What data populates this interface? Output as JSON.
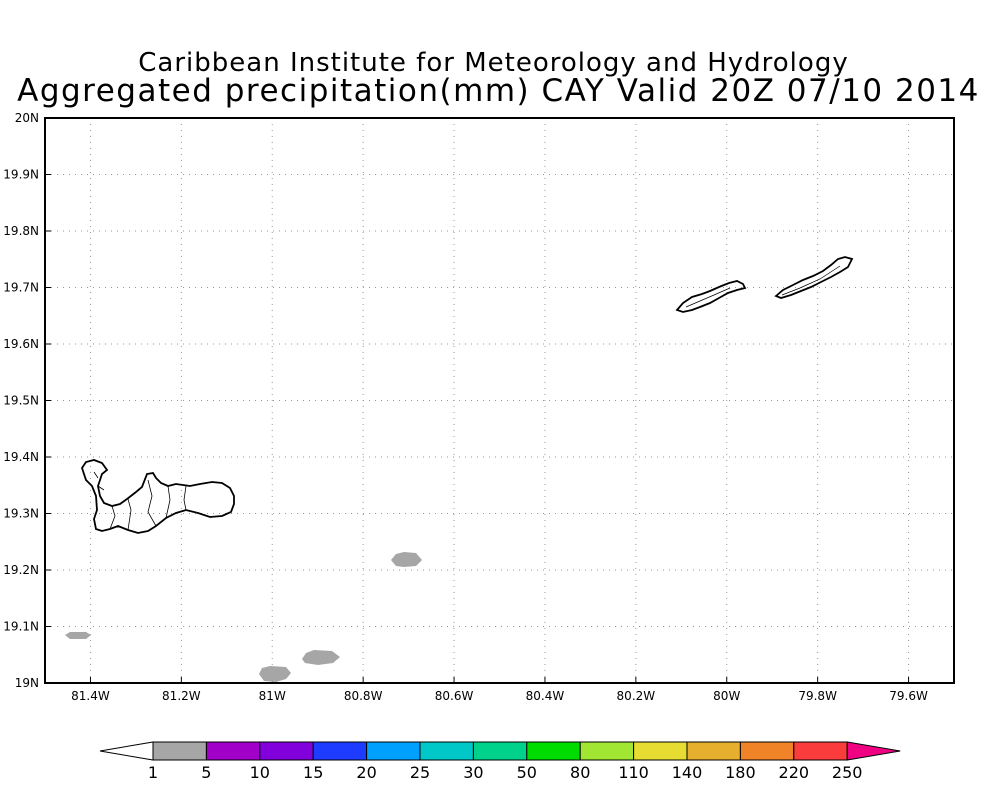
{
  "header": {
    "line1": "Caribbean Institute for Meteorology and Hydrology",
    "line2": "Aggregated precipitation(mm) CAY Valid 20Z 07/10 2014"
  },
  "axes": {
    "lat_labels": [
      "20N",
      "19.9N",
      "19.8N",
      "19.7N",
      "19.6N",
      "19.5N",
      "19.4N",
      "19.3N",
      "19.2N",
      "19.1N",
      "19N"
    ],
    "lon_labels": [
      "81.4W",
      "81.2W",
      "81W",
      "80.8W",
      "80.6W",
      "80.4W",
      "80.2W",
      "80W",
      "79.8W",
      "79.6W"
    ],
    "lat_range": [
      19.0,
      20.0
    ],
    "lon_range": [
      -81.5,
      -79.5
    ],
    "grid": "dotted"
  },
  "colorbar": {
    "levels": [
      "1",
      "5",
      "10",
      "15",
      "20",
      "25",
      "30",
      "50",
      "80",
      "110",
      "140",
      "180",
      "220",
      "250"
    ],
    "colors": [
      "#a6a6a6",
      "#a000c8",
      "#8200dc",
      "#1e3cff",
      "#00a0ff",
      "#00c8c8",
      "#00d28c",
      "#00dc00",
      "#a0e632",
      "#e6dc32",
      "#e6af2d",
      "#f08228",
      "#fa3c3c",
      "#f00082"
    ],
    "under_color": "#ffffff"
  },
  "rain_areas": [
    {
      "label": "1-5 mm",
      "color": "#a6a6a6",
      "lon": -81.43,
      "lat": 19.082
    },
    {
      "label": "1-5 mm",
      "color": "#a6a6a6",
      "lon": -80.99,
      "lat": 19.015
    },
    {
      "label": "1-5 mm",
      "color": "#a6a6a6",
      "lon": -80.92,
      "lat": 19.045
    },
    {
      "label": "1-5 mm",
      "color": "#a6a6a6",
      "lon": -80.72,
      "lat": 19.22
    }
  ]
}
